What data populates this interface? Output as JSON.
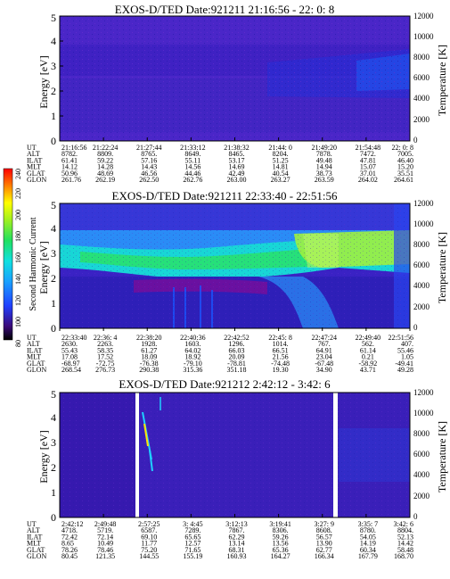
{
  "chart_data": [
    {
      "type": "heatmap",
      "title": "EXOS-D/TED   Date:921211  21:16:56 - 22: 0: 8",
      "ylabel": "Energy [eV]",
      "y2label": "Temperature [K]",
      "ylim": [
        0,
        5
      ],
      "yticks": [
        "0",
        "1",
        "2",
        "3",
        "4",
        "5"
      ],
      "y2lim": [
        0,
        12000
      ],
      "y2ticks": [
        "0",
        "2000",
        "4000",
        "6000",
        "8000",
        "10000",
        "12000"
      ],
      "xticks": [
        "21:16:56",
        "21:22:24",
        "21:27:44",
        "21:33:12",
        "21:38:32",
        "21:44: 0",
        "21:49:20",
        "21:54:48",
        "22: 0: 8"
      ],
      "rows": [
        {
          "label": "UT",
          "values": [
            "21:16:56",
            "21:22:24",
            "21:27:44",
            "21:33:12",
            "21:38:32",
            "21:44: 0",
            "21:49:20",
            "21:54:48",
            "22: 0: 8"
          ]
        },
        {
          "label": "ALT",
          "values": [
            "8782.",
            "8809.",
            "8765.",
            "8649.",
            "8465.",
            "8204.",
            "7878.",
            "7472.",
            "7005."
          ]
        },
        {
          "label": "ILAT",
          "values": [
            "61.41",
            "59.22",
            "57.16",
            "55.11",
            "53.17",
            "51.25",
            "49.48",
            "47.81",
            "46.40"
          ]
        },
        {
          "label": "MLT",
          "values": [
            "14.12",
            "14.28",
            "14.43",
            "14.56",
            "14.69",
            "14.81",
            "14.94",
            "15.07",
            "15.20"
          ]
        },
        {
          "label": "GLAT",
          "values": [
            "50.96",
            "48.69",
            "46.56",
            "44.46",
            "42.49",
            "40.54",
            "38.73",
            "37.01",
            "35.51"
          ]
        },
        {
          "label": "GLON",
          "values": [
            "261.76",
            "262.19",
            "262.50",
            "262.76",
            "263.00",
            "263.27",
            "263.59",
            "264.02",
            "264.61"
          ]
        }
      ]
    },
    {
      "type": "heatmap",
      "title": "EXOS-D/TED   Date:921211  22:33:40 - 22:51:56",
      "ylabel": "Energy [eV]",
      "y2label": "Temperature [K]",
      "colorbar_label": "Second Harmonic Current",
      "colorbar_ticks": [
        "80",
        "100",
        "120",
        "140",
        "160",
        "180",
        "200",
        "220",
        "240"
      ],
      "ylim": [
        0,
        5
      ],
      "yticks": [
        "0",
        "1",
        "2",
        "3",
        "4",
        "5"
      ],
      "y2lim": [
        0,
        12000
      ],
      "y2ticks": [
        "0",
        "2000",
        "4000",
        "6000",
        "8000",
        "10000",
        "12000"
      ],
      "xticks": [
        "22:33:40",
        "22:36: 4",
        "22:38:20",
        "22:40:36",
        "22:42:52",
        "22:45: 8",
        "22:47:24",
        "22:49:40",
        "22:51:56"
      ],
      "rows": [
        {
          "label": "UT",
          "values": [
            "22:33:40",
            "22:36: 4",
            "22:38:20",
            "22:40:36",
            "22:42:52",
            "22:45: 8",
            "22:47:24",
            "22:49:40",
            "22:51:56"
          ]
        },
        {
          "label": "ALT",
          "values": [
            "2630.",
            "2263.",
            "1928.",
            "1603.",
            "1296.",
            "1014.",
            "767.",
            "562.",
            "407."
          ]
        },
        {
          "label": "ILAT",
          "values": [
            "55.43",
            "58.35",
            "61.27",
            "64.02",
            "66.03",
            "66.51",
            "64.91",
            "61.14",
            "55.46"
          ]
        },
        {
          "label": "MLT",
          "values": [
            "17.08",
            "17.52",
            "18.09",
            "18.92",
            "20.09",
            "21.56",
            "23.04",
            "0.21",
            "1.05"
          ]
        },
        {
          "label": "GLAT",
          "values": [
            "-68.97",
            "-72.75",
            "-76.38",
            "-79.10",
            "-78.81",
            "-74.48",
            "-67.48",
            "-58.92",
            "-49.41"
          ]
        },
        {
          "label": "GLON",
          "values": [
            "268.54",
            "276.73",
            "290.38",
            "315.36",
            "351.18",
            "19.30",
            "34.90",
            "43.71",
            "49.28"
          ]
        }
      ]
    },
    {
      "type": "heatmap",
      "title": "EXOS-D/TED   Date:921212   2:42:12 -  3:42: 6",
      "ylabel": "Energy [eV]",
      "y2label": "Temperature [K]",
      "ylim": [
        0,
        5
      ],
      "yticks": [
        "0",
        "1",
        "2",
        "3",
        "4",
        "5"
      ],
      "y2lim": [
        0,
        12000
      ],
      "y2ticks": [
        "0",
        "2000",
        "4000",
        "6000",
        "8000",
        "10000",
        "12000"
      ],
      "xticks": [
        "2:42:12",
        "2:49:48",
        "2:57:25",
        "3: 4:45",
        "3:12:13",
        "3:19:41",
        "3:27: 9",
        "3:35: 7",
        "3:42: 6"
      ],
      "rows": [
        {
          "label": "UT",
          "values": [
            "2:42:12",
            "2:49:48",
            "2:57:25",
            "3: 4:45",
            "3:12:13",
            "3:19:41",
            "3:27: 9",
            "3:35: 7",
            "3:42: 6"
          ]
        },
        {
          "label": "ALT",
          "values": [
            "4718.",
            "5719.",
            "6587.",
            "7289.",
            "7867.",
            "8306.",
            "8608.",
            "8780.",
            "8804."
          ]
        },
        {
          "label": "ILAT",
          "values": [
            "72.42",
            "72.14",
            "69.10",
            "65.65",
            "62.29",
            "59.26",
            "56.57",
            "54.05",
            "52.13"
          ]
        },
        {
          "label": "MLT",
          "values": [
            "8.65",
            "10.49",
            "11.77",
            "12.57",
            "13.14",
            "13.56",
            "13.90",
            "14.19",
            "14.42"
          ]
        },
        {
          "label": "GLAT",
          "values": [
            "78.26",
            "78.46",
            "75.20",
            "71.65",
            "68.31",
            "65.36",
            "62.77",
            "60.34",
            "58.48"
          ]
        },
        {
          "label": "GLON",
          "values": [
            "80.45",
            "121.35",
            "144.55",
            "155.19",
            "160.93",
            "164.27",
            "166.34",
            "167.79",
            "168.70"
          ]
        }
      ]
    }
  ]
}
